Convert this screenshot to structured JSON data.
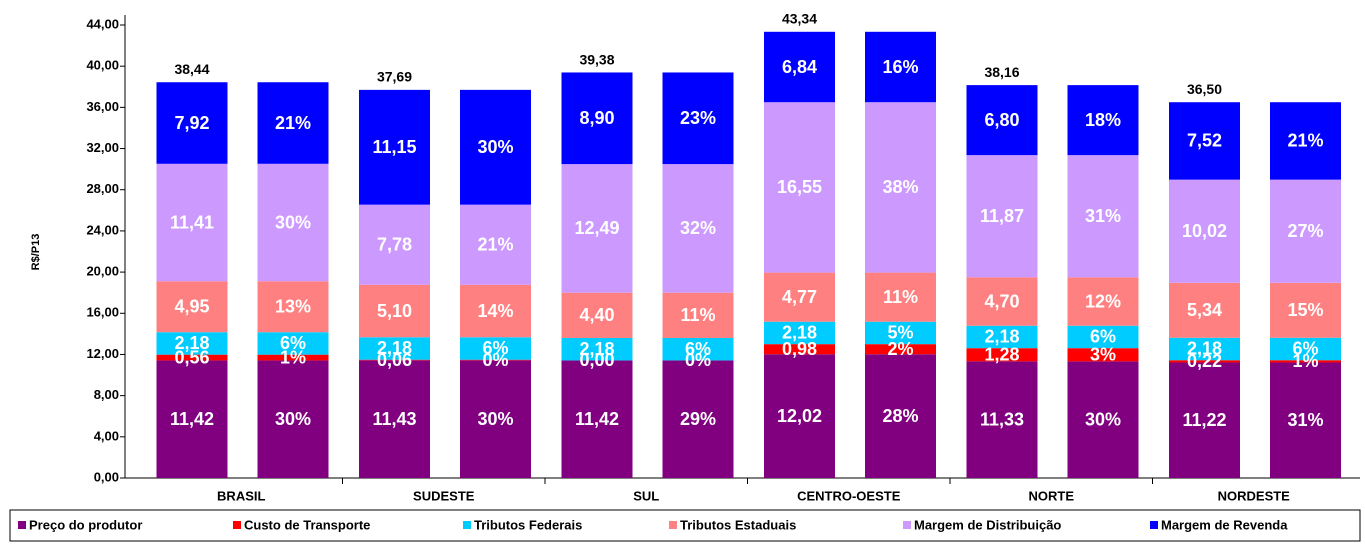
{
  "chart_data": {
    "type": "stacked-bar",
    "y_label": "R$/P13",
    "categories": [
      "BRASIL",
      "SUDESTE",
      "SUL",
      "CENTRO-OESTE",
      "NORTE",
      "NORDESTE"
    ],
    "ylim": [
      0,
      44
    ],
    "yticks": [
      {
        "value": 0,
        "label": "0,00"
      },
      {
        "value": 4,
        "label": "4,00"
      },
      {
        "value": 8,
        "label": "8,00"
      },
      {
        "value": 12,
        "label": "12,00"
      },
      {
        "value": 16,
        "label": "16,00"
      },
      {
        "value": 20,
        "label": "20,00"
      },
      {
        "value": 24,
        "label": "24,00"
      },
      {
        "value": 28,
        "label": "28,00"
      },
      {
        "value": 32,
        "label": "32,00"
      },
      {
        "value": 36,
        "label": "36,00"
      },
      {
        "value": 40,
        "label": "40,00"
      },
      {
        "value": 44,
        "label": "44,00"
      }
    ],
    "series": [
      {
        "name": "Preço do produtor",
        "color": "#800080",
        "values": [
          11.42,
          11.43,
          11.42,
          12.02,
          11.33,
          11.22
        ],
        "value_labels": [
          "11,42",
          "11,43",
          "11,42",
          "12,02",
          "11,33",
          "11,22"
        ],
        "percent_labels": [
          "30%",
          "30%",
          "29%",
          "28%",
          "30%",
          "31%"
        ]
      },
      {
        "name": "Custo de Transporte",
        "color": "#ff0000",
        "values": [
          0.56,
          0.06,
          0.0,
          0.98,
          1.28,
          0.22
        ],
        "value_labels": [
          "0,56",
          "0,06",
          "0,00",
          "0,98",
          "1,28",
          "0,22"
        ],
        "percent_labels": [
          "1%",
          "0%",
          "0%",
          "2%",
          "3%",
          "1%"
        ]
      },
      {
        "name": "Tributos Federais",
        "color": "#00ccff",
        "values": [
          2.18,
          2.18,
          2.18,
          2.18,
          2.18,
          2.18
        ],
        "value_labels": [
          "2,18",
          "2,18",
          "2,18",
          "2,18",
          "2,18",
          "2,18"
        ],
        "percent_labels": [
          "6%",
          "6%",
          "6%",
          "5%",
          "6%",
          "6%"
        ]
      },
      {
        "name": "Tributos Estaduais",
        "color": "#ff8080",
        "values": [
          4.95,
          5.1,
          4.4,
          4.77,
          4.7,
          5.34
        ],
        "value_labels": [
          "4,95",
          "5,10",
          "4,40",
          "4,77",
          "4,70",
          "5,34"
        ],
        "percent_labels": [
          "13%",
          "14%",
          "11%",
          "11%",
          "12%",
          "15%"
        ]
      },
      {
        "name": "Margem de Distribuição",
        "color": "#cc99ff",
        "values": [
          11.41,
          7.78,
          12.49,
          16.55,
          11.87,
          10.02
        ],
        "value_labels": [
          "11,41",
          "7,78",
          "12,49",
          "16,55",
          "11,87",
          "10,02"
        ],
        "percent_labels": [
          "30%",
          "21%",
          "32%",
          "38%",
          "31%",
          "27%"
        ]
      },
      {
        "name": "Margem de Revenda",
        "color": "#0000ff",
        "values": [
          7.92,
          11.15,
          8.9,
          6.84,
          6.8,
          7.52
        ],
        "value_labels": [
          "7,92",
          "11,15",
          "8,90",
          "6,84",
          "6,80",
          "7,52"
        ],
        "percent_labels": [
          "21%",
          "30%",
          "23%",
          "16%",
          "18%",
          "21%"
        ]
      }
    ],
    "totals": [
      38.44,
      37.69,
      39.38,
      43.34,
      38.16,
      36.5
    ],
    "total_labels": [
      "38,44",
      "37,69",
      "39,38",
      "43,34",
      "38,16",
      "36,50"
    ]
  }
}
